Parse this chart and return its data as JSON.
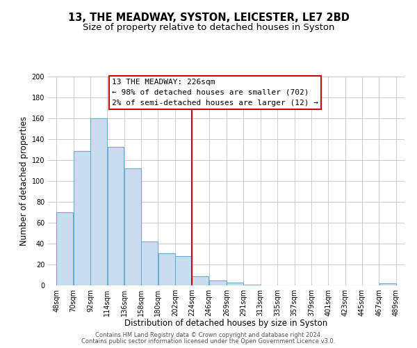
{
  "title": "13, THE MEADWAY, SYSTON, LEICESTER, LE7 2BD",
  "subtitle": "Size of property relative to detached houses in Syston",
  "xlabel": "Distribution of detached houses by size in Syston",
  "ylabel": "Number of detached properties",
  "bar_left_edges": [
    48,
    70,
    92,
    114,
    136,
    158,
    180,
    202,
    224,
    246,
    269,
    291,
    313,
    335,
    357,
    379,
    401,
    423,
    445,
    467
  ],
  "bar_widths": [
    22,
    22,
    22,
    22,
    22,
    22,
    22,
    22,
    22,
    23,
    22,
    22,
    22,
    22,
    22,
    22,
    22,
    22,
    22,
    22
  ],
  "bar_heights": [
    70,
    129,
    160,
    133,
    112,
    42,
    31,
    28,
    9,
    5,
    3,
    1,
    0,
    0,
    0,
    0,
    0,
    0,
    0,
    2
  ],
  "bar_color": "#c8ddef",
  "bar_edgecolor": "#6aaed6",
  "vline_x": 224,
  "vline_color": "#cc0000",
  "ylim": [
    0,
    200
  ],
  "yticks": [
    0,
    20,
    40,
    60,
    80,
    100,
    120,
    140,
    160,
    180,
    200
  ],
  "xlim": [
    37,
    500
  ],
  "xtick_labels": [
    "48sqm",
    "70sqm",
    "92sqm",
    "114sqm",
    "136sqm",
    "158sqm",
    "180sqm",
    "202sqm",
    "224sqm",
    "246sqm",
    "269sqm",
    "291sqm",
    "313sqm",
    "335sqm",
    "357sqm",
    "379sqm",
    "401sqm",
    "423sqm",
    "445sqm",
    "467sqm",
    "489sqm"
  ],
  "xtick_positions": [
    48,
    70,
    92,
    114,
    136,
    158,
    180,
    202,
    224,
    246,
    269,
    291,
    313,
    335,
    357,
    379,
    401,
    423,
    445,
    467,
    489
  ],
  "annotation_line1": "13 THE MEADWAY: 226sqm",
  "annotation_line2": "← 98% of detached houses are smaller (702)",
  "annotation_line3": "2% of semi-detached houses are larger (12) →",
  "annotation_box_color": "#ffffff",
  "annotation_box_edgecolor": "#cc0000",
  "footer_line1": "Contains HM Land Registry data © Crown copyright and database right 2024.",
  "footer_line2": "Contains public sector information licensed under the Open Government Licence v3.0.",
  "background_color": "#ffffff",
  "grid_color": "#cccccc",
  "title_fontsize": 10.5,
  "subtitle_fontsize": 9.5,
  "xlabel_fontsize": 8.5,
  "ylabel_fontsize": 8.5,
  "tick_fontsize": 7,
  "annotation_fontsize": 8,
  "footer_fontsize": 6
}
